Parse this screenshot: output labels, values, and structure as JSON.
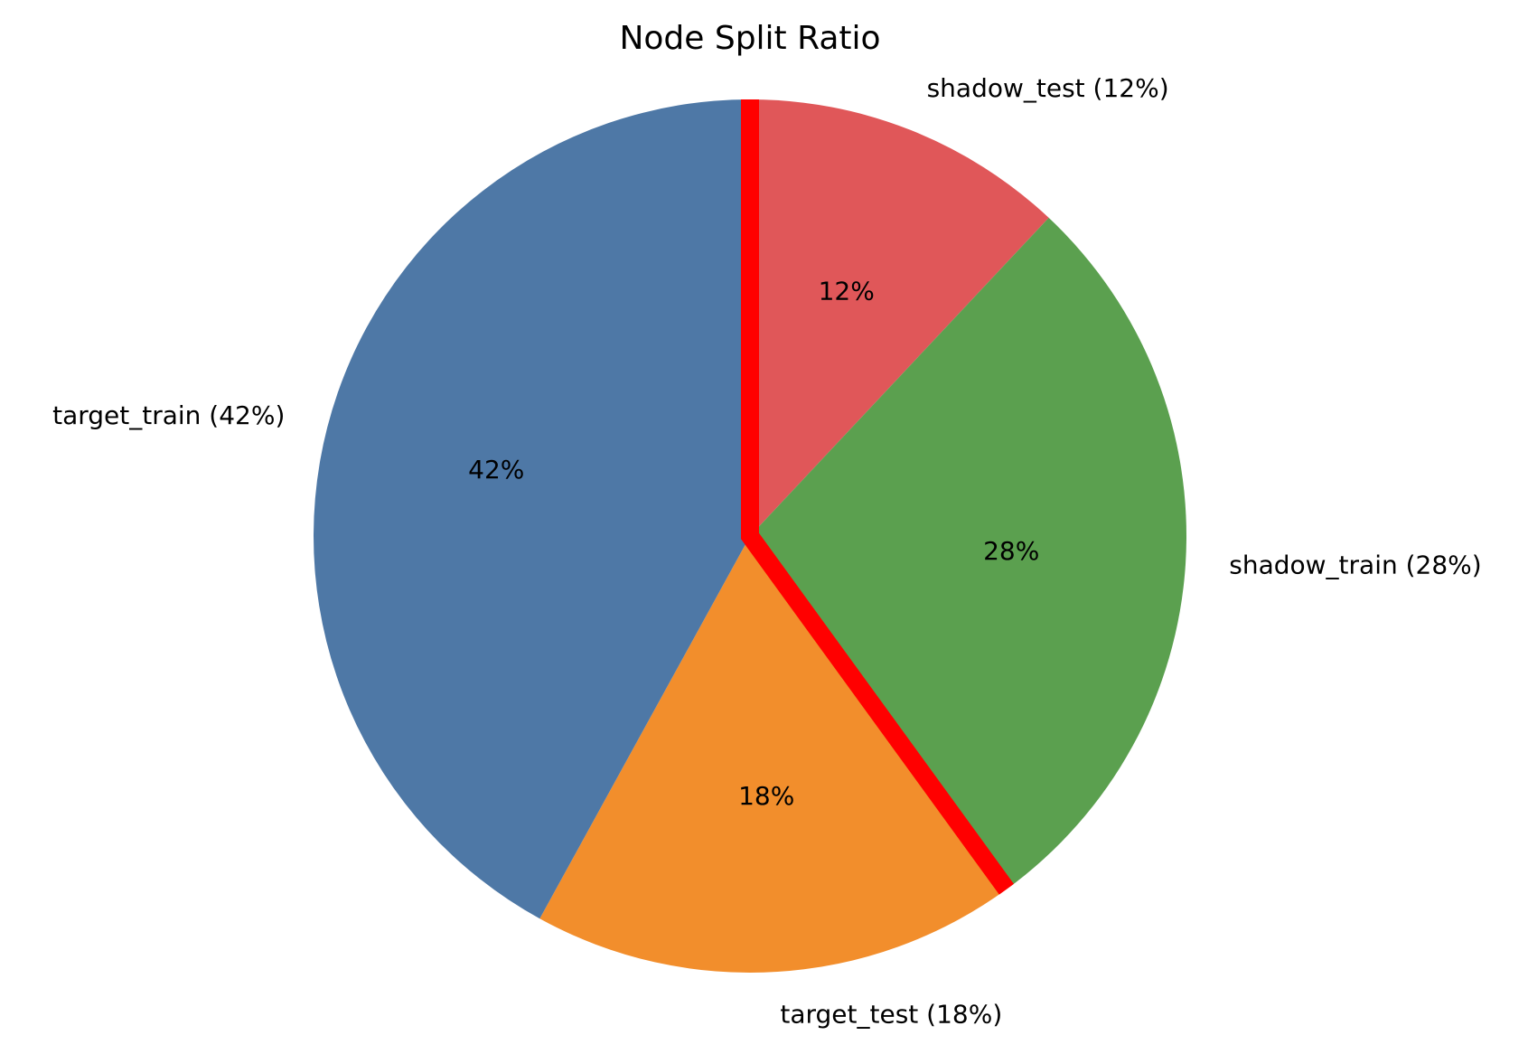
{
  "chart_data": {
    "type": "pie",
    "title": "Node Split Ratio",
    "slices": [
      {
        "name": "shadow_test",
        "value": 12,
        "label": "shadow_test (12%)",
        "pct_label": "12%",
        "color": "#e05759"
      },
      {
        "name": "shadow_train",
        "value": 28,
        "label": "shadow_train (28%)",
        "pct_label": "28%",
        "color": "#5ba04f"
      },
      {
        "name": "target_test",
        "value": 18,
        "label": "target_test (18%)",
        "pct_label": "18%",
        "color": "#f28e2c"
      },
      {
        "name": "target_train",
        "value": 42,
        "label": "target_train (42%)",
        "pct_label": "42%",
        "color": "#4e78a6"
      }
    ],
    "start_angle_deg": 90,
    "direction": "clockwise",
    "split_line": {
      "color": "#ff0000",
      "between": [
        "target_train",
        "shadow_test",
        "target_test",
        "shadow_train"
      ]
    },
    "legend": "none"
  }
}
